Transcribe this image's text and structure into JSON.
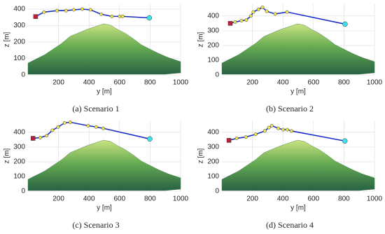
{
  "chart_data": [
    {
      "type": "line",
      "caption": "(a) Scenario 1",
      "xlabel": "y [m]",
      "ylabel": "z [m]",
      "xlim": [
        0,
        1000
      ],
      "ylim": [
        0,
        430
      ],
      "xticks": [
        200,
        400,
        600,
        800,
        1000
      ],
      "yticks": [
        0,
        100,
        200,
        300,
        400
      ],
      "grid": true,
      "color": "#1c2fc4",
      "marker_color": "#f2e84a",
      "start_color": "#c21c3a",
      "end_color": "#3fe0e8",
      "x": [
        50,
        105,
        190,
        250,
        300,
        355,
        410,
        480,
        550,
        600,
        620,
        795
      ],
      "values": [
        355,
        382,
        391,
        391,
        396,
        400,
        396,
        369,
        356,
        356,
        356,
        347
      ]
    },
    {
      "type": "line",
      "caption": "(b) Scenario 2",
      "xlabel": "y [m]",
      "ylabel": "z [m]",
      "xlim": [
        0,
        1000
      ],
      "ylim": [
        0,
        480
      ],
      "xticks": [
        200,
        400,
        600,
        800,
        1000
      ],
      "yticks": [
        0,
        100,
        200,
        300,
        400
      ],
      "grid": true,
      "color": "#1c2fc4",
      "marker_color": "#f2e84a",
      "start_color": "#c21c3a",
      "end_color": "#3fe0e8",
      "x": [
        55,
        87,
        128,
        160,
        190,
        206,
        240,
        266,
        294,
        349,
        427,
        807
      ],
      "values": [
        350,
        359,
        368,
        373,
        400,
        427,
        445,
        459,
        432,
        414,
        427,
        345
      ]
    },
    {
      "type": "line",
      "caption": "(c) Scenario 3",
      "xlabel": "y [m]",
      "ylabel": "z [m]",
      "xlim": [
        0,
        1000
      ],
      "ylim": [
        0,
        480
      ],
      "xticks": [
        200,
        400,
        600,
        800,
        1000
      ],
      "yticks": [
        0,
        100,
        200,
        300,
        400
      ],
      "grid": true,
      "color": "#1c2fc4",
      "marker_color": "#f2e84a",
      "start_color": "#c21c3a",
      "end_color": "#3fe0e8",
      "x": [
        33,
        80,
        122,
        160,
        197,
        240,
        277,
        394,
        446,
        493,
        798
      ],
      "values": [
        359,
        364,
        377,
        414,
        436,
        464,
        468,
        445,
        436,
        427,
        355
      ]
    },
    {
      "type": "line",
      "caption": "(d) Scenario 4",
      "xlabel": "y [m]",
      "ylabel": "z [m]",
      "xlim": [
        0,
        1000
      ],
      "ylim": [
        0,
        480
      ],
      "xticks": [
        200,
        400,
        600,
        800,
        1000
      ],
      "yticks": [
        0,
        100,
        200,
        300,
        400
      ],
      "grid": true,
      "color": "#1c2fc4",
      "marker_color": "#f2e84a",
      "start_color": "#c21c3a",
      "end_color": "#3fe0e8",
      "x": [
        46,
        97,
        157,
        221,
        281,
        308,
        327,
        369,
        401,
        429,
        456,
        806
      ],
      "values": [
        345,
        359,
        368,
        386,
        409,
        432,
        445,
        427,
        418,
        418,
        409,
        341
      ]
    }
  ]
}
